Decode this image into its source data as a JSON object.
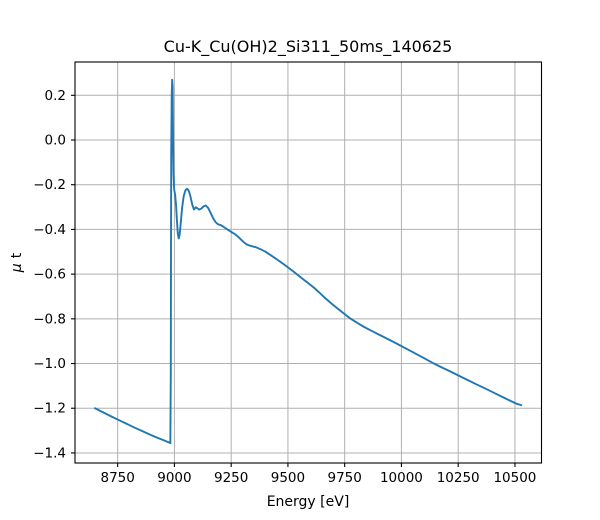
{
  "figure": {
    "background": "#ffffff"
  },
  "chart_data": {
    "type": "line",
    "title": "Cu-K_Cu(OH)2_Si311_50ms_140625",
    "xlabel": "Energy [eV]",
    "ylabel": "μ t",
    "ylabel_parts": {
      "mu": "μ",
      "rest": "t"
    },
    "xlim": [
      8562,
      10617
    ],
    "ylim": [
      -1.445,
      0.349
    ],
    "x_ticks": [
      8750,
      9000,
      9250,
      9500,
      9750,
      10000,
      10250,
      10500
    ],
    "y_ticks": [
      0.2,
      0.0,
      -0.2,
      -0.4,
      -0.6,
      -0.8,
      -1.0,
      -1.2,
      -1.4
    ],
    "grid": true,
    "legend": "none",
    "line_color": "#1f77b4",
    "grid_color": "#b0b0b0",
    "spine_color": "#000000",
    "series": [
      {
        "name": "mu_t_spectrum",
        "points": [
          [
            8650,
            -1.2
          ],
          [
            8685,
            -1.218
          ],
          [
            8720,
            -1.236
          ],
          [
            8755,
            -1.253
          ],
          [
            8790,
            -1.27
          ],
          [
            8825,
            -1.287
          ],
          [
            8860,
            -1.303
          ],
          [
            8895,
            -1.319
          ],
          [
            8925,
            -1.332
          ],
          [
            8950,
            -1.342
          ],
          [
            8966,
            -1.349
          ],
          [
            8976,
            -1.353
          ],
          [
            8982,
            -1.356
          ],
          [
            8984,
            -1.05
          ],
          [
            8985,
            -0.45
          ],
          [
            8986,
            -0.05
          ],
          [
            8988,
            0.2
          ],
          [
            8990,
            0.27
          ],
          [
            8992,
            0.24
          ],
          [
            8994,
            -0.02
          ],
          [
            8996,
            -0.155
          ],
          [
            8999,
            -0.222
          ],
          [
            9003,
            -0.245
          ],
          [
            9007,
            -0.29
          ],
          [
            9011,
            -0.36
          ],
          [
            9015,
            -0.42
          ],
          [
            9019,
            -0.44
          ],
          [
            9023,
            -0.424
          ],
          [
            9028,
            -0.368
          ],
          [
            9034,
            -0.302
          ],
          [
            9041,
            -0.25
          ],
          [
            9049,
            -0.224
          ],
          [
            9056,
            -0.218
          ],
          [
            9063,
            -0.227
          ],
          [
            9070,
            -0.25
          ],
          [
            9078,
            -0.287
          ],
          [
            9086,
            -0.311
          ],
          [
            9094,
            -0.301
          ],
          [
            9102,
            -0.306
          ],
          [
            9110,
            -0.311
          ],
          [
            9119,
            -0.306
          ],
          [
            9128,
            -0.297
          ],
          [
            9138,
            -0.293
          ],
          [
            9148,
            -0.303
          ],
          [
            9158,
            -0.323
          ],
          [
            9170,
            -0.349
          ],
          [
            9181,
            -0.367
          ],
          [
            9192,
            -0.377
          ],
          [
            9204,
            -0.381
          ],
          [
            9216,
            -0.388
          ],
          [
            9230,
            -0.398
          ],
          [
            9250,
            -0.411
          ],
          [
            9265,
            -0.42
          ],
          [
            9280,
            -0.432
          ],
          [
            9300,
            -0.452
          ],
          [
            9315,
            -0.465
          ],
          [
            9330,
            -0.472
          ],
          [
            9345,
            -0.476
          ],
          [
            9362,
            -0.481
          ],
          [
            9380,
            -0.489
          ],
          [
            9400,
            -0.499
          ],
          [
            9425,
            -0.516
          ],
          [
            9450,
            -0.533
          ],
          [
            9475,
            -0.551
          ],
          [
            9500,
            -0.57
          ],
          [
            9520,
            -0.585
          ],
          [
            9540,
            -0.601
          ],
          [
            9565,
            -0.621
          ],
          [
            9590,
            -0.641
          ],
          [
            9615,
            -0.661
          ],
          [
            9640,
            -0.684
          ],
          [
            9665,
            -0.708
          ],
          [
            9692,
            -0.732
          ],
          [
            9720,
            -0.755
          ],
          [
            9750,
            -0.779
          ],
          [
            9777,
            -0.8
          ],
          [
            9805,
            -0.818
          ],
          [
            9835,
            -0.836
          ],
          [
            9865,
            -0.852
          ],
          [
            9900,
            -0.87
          ],
          [
            9935,
            -0.888
          ],
          [
            9970,
            -0.906
          ],
          [
            10000,
            -0.922
          ],
          [
            10035,
            -0.941
          ],
          [
            10070,
            -0.96
          ],
          [
            10105,
            -0.979
          ],
          [
            10143,
            -1.0
          ],
          [
            10175,
            -1.016
          ],
          [
            10210,
            -1.033
          ],
          [
            10250,
            -1.053
          ],
          [
            10290,
            -1.073
          ],
          [
            10330,
            -1.093
          ],
          [
            10370,
            -1.112
          ],
          [
            10410,
            -1.132
          ],
          [
            10450,
            -1.152
          ],
          [
            10480,
            -1.167
          ],
          [
            10505,
            -1.179
          ],
          [
            10528,
            -1.186
          ]
        ]
      }
    ]
  }
}
